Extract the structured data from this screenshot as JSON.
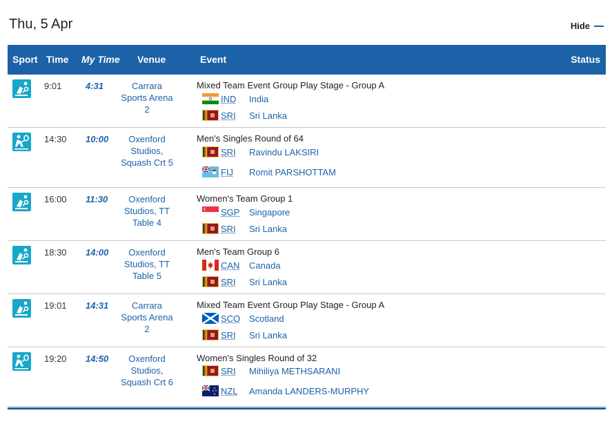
{
  "day": {
    "title": "Thu, 5 Apr",
    "hide_label": "Hide"
  },
  "columns": {
    "sport": "Sport",
    "time": "Time",
    "my_time": "My Time",
    "venue": "Venue",
    "event": "Event",
    "status": "Status"
  },
  "icon_color": "#17a7c9",
  "accent_color": "#1b62a8",
  "rows": [
    {
      "sport_icon": "table-tennis-icon",
      "time": "9:01",
      "my_time": "4:31",
      "venue": [
        "Carrara",
        "Sports Arena",
        "2"
      ],
      "event": "Mixed Team Event Group Play Stage - Group A",
      "teams": [
        {
          "code": "IND",
          "name": "India",
          "flag": "india-flag-icon"
        },
        {
          "code": "SRI",
          "name": "Sri Lanka",
          "flag": "sri-lanka-flag-icon"
        }
      ]
    },
    {
      "sport_icon": "squash-icon",
      "time": "14:30",
      "my_time": "10:00",
      "venue": [
        "Oxenford",
        "Studios,",
        "Squash Crt 5"
      ],
      "event": "Men's Singles Round of 64",
      "teams": [
        {
          "code": "SRI",
          "name": "Ravindu LAKSIRI",
          "flag": "sri-lanka-flag-icon"
        },
        {
          "code": "FIJ",
          "name": "Romit PARSHOTTAM",
          "flag": "fiji-flag-icon"
        }
      ]
    },
    {
      "sport_icon": "table-tennis-icon",
      "time": "16:00",
      "my_time": "11:30",
      "venue": [
        "Oxenford",
        "Studios, TT",
        "Table 4"
      ],
      "event": "Women's Team Group 1",
      "teams": [
        {
          "code": "SGP",
          "name": "Singapore",
          "flag": "singapore-flag-icon"
        },
        {
          "code": "SRI",
          "name": "Sri Lanka",
          "flag": "sri-lanka-flag-icon"
        }
      ]
    },
    {
      "sport_icon": "table-tennis-icon",
      "time": "18:30",
      "my_time": "14:00",
      "venue": [
        "Oxenford",
        "Studios, TT",
        "Table 5"
      ],
      "event": "Men's Team Group 6",
      "teams": [
        {
          "code": "CAN",
          "name": "Canada",
          "flag": "canada-flag-icon"
        },
        {
          "code": "SRI",
          "name": "Sri Lanka",
          "flag": "sri-lanka-flag-icon"
        }
      ]
    },
    {
      "sport_icon": "table-tennis-icon",
      "time": "19:01",
      "my_time": "14:31",
      "venue": [
        "Carrara",
        "Sports Arena",
        "2"
      ],
      "event": "Mixed Team Event Group Play Stage - Group A",
      "teams": [
        {
          "code": "SCO",
          "name": "Scotland",
          "flag": "scotland-flag-icon"
        },
        {
          "code": "SRI",
          "name": "Sri Lanka",
          "flag": "sri-lanka-flag-icon"
        }
      ]
    },
    {
      "sport_icon": "squash-icon",
      "time": "19:20",
      "my_time": "14:50",
      "venue": [
        "Oxenford",
        "Studios,",
        "Squash Crt 6"
      ],
      "event": "Women's Singles Round of 32",
      "teams": [
        {
          "code": "SRI",
          "name": "Mihiliya METHSARANI",
          "flag": "sri-lanka-flag-icon"
        },
        {
          "code": "NZL",
          "name": "Amanda LANDERS-MURPHY",
          "flag": "new-zealand-flag-icon"
        }
      ]
    }
  ]
}
